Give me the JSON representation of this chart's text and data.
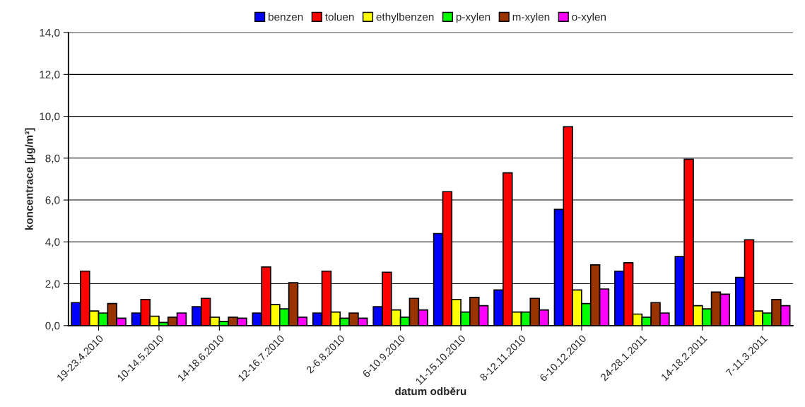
{
  "chart_data": {
    "type": "bar",
    "xlabel": "datum odběru",
    "ylabel": "koncentrace [µg/m³]",
    "categories": [
      "19-23.4.2010",
      "10-14.5.2010",
      "14-18.6.2010",
      "12-16.7.2010",
      "2-6.8.2010",
      "6-10.9.2010",
      "11-15.10.2010",
      "8-12.11.2010",
      "6-10.12.2010",
      "24-28.1.2011",
      "14-18.2.2011",
      "7-11.3.2011"
    ],
    "series": [
      {
        "name": "benzen",
        "color": "#0000ff",
        "values": [
          1.1,
          0.6,
          0.9,
          0.6,
          0.6,
          0.9,
          4.4,
          1.7,
          5.55,
          2.6,
          3.3,
          2.3
        ]
      },
      {
        "name": "toluen",
        "color": "#ff0000",
        "values": [
          2.6,
          1.25,
          1.3,
          2.8,
          2.6,
          2.55,
          6.4,
          7.3,
          9.5,
          3.0,
          7.95,
          4.1
        ]
      },
      {
        "name": "ethylbenzen",
        "color": "#ffff00",
        "values": [
          0.7,
          0.45,
          0.4,
          1.0,
          0.65,
          0.75,
          1.25,
          0.65,
          1.7,
          0.55,
          0.95,
          0.7
        ]
      },
      {
        "name": "p-xylen",
        "color": "#00ff00",
        "values": [
          0.6,
          0.15,
          0.2,
          0.8,
          0.35,
          0.4,
          0.65,
          0.65,
          1.05,
          0.4,
          0.8,
          0.6
        ]
      },
      {
        "name": "m-xylen",
        "color": "#993300",
        "values": [
          1.05,
          0.4,
          0.4,
          2.05,
          0.6,
          1.3,
          1.35,
          1.3,
          2.9,
          1.1,
          1.6,
          1.25
        ]
      },
      {
        "name": "o-xylen",
        "color": "#ff00ff",
        "values": [
          0.35,
          0.6,
          0.35,
          0.4,
          0.35,
          0.75,
          0.95,
          0.75,
          1.75,
          0.6,
          1.5,
          0.95
        ]
      }
    ],
    "ylim": [
      0,
      14
    ],
    "yticks": [
      {
        "value": 0,
        "label": "0,0"
      },
      {
        "value": 2,
        "label": "2,0"
      },
      {
        "value": 4,
        "label": "4,0"
      },
      {
        "value": 6,
        "label": "6,0"
      },
      {
        "value": 8,
        "label": "8,0"
      },
      {
        "value": 10,
        "label": "10,0"
      },
      {
        "value": 12,
        "label": "12,0"
      },
      {
        "value": 14,
        "label": "14,0"
      }
    ],
    "grid": "y",
    "legend": "top"
  }
}
